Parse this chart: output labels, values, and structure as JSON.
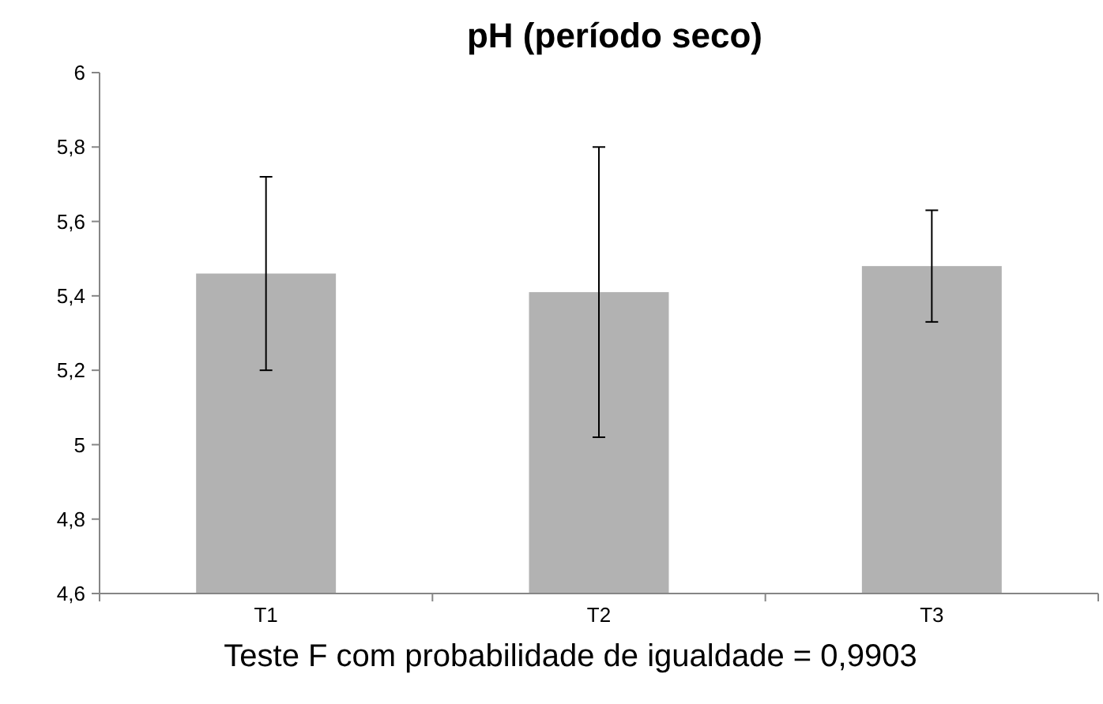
{
  "chart_data": {
    "type": "bar",
    "title": "pH (período seco)",
    "categories": [
      "T1",
      "T2",
      "T3"
    ],
    "series": [
      {
        "color": "#b2b2b2",
        "values": [
          5.46,
          5.41,
          5.48
        ],
        "errors": [
          0.26,
          0.39,
          0.15
        ]
      }
    ],
    "ylim": [
      4.6,
      6
    ],
    "yticks": [
      {
        "value": 4.6,
        "label": "4,6"
      },
      {
        "value": 4.8,
        "label": "4,8"
      },
      {
        "value": 5,
        "label": "5"
      },
      {
        "value": 5.2,
        "label": "5,2"
      },
      {
        "value": 5.4,
        "label": "5,4"
      },
      {
        "value": 5.6,
        "label": "5,6"
      },
      {
        "value": 5.8,
        "label": "5,8"
      },
      {
        "value": 6,
        "label": "6"
      }
    ],
    "grid": false,
    "annotations": [
      "Teste F com probabilidade de igualdade = 0,9903"
    ]
  }
}
